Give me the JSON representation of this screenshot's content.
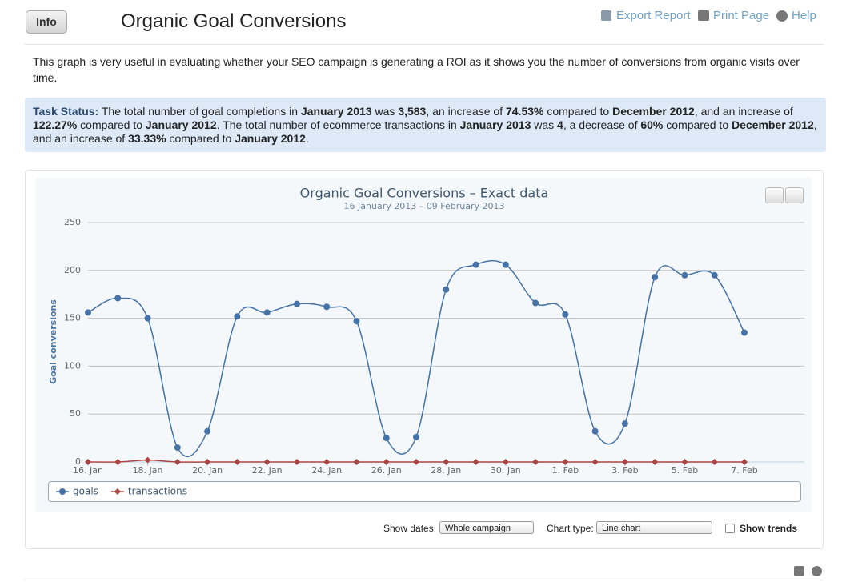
{
  "header": {
    "button": "Info",
    "title": "Organic Goal Conversions",
    "links": [
      "Export Report",
      "Print Page",
      "Help"
    ]
  },
  "description": "This graph is very useful in evaluating whether your SEO campaign is generating a ROI as it shows you the number of conversions from organic visits over time.",
  "task_status": {
    "label": "Task Status:",
    "parts": [
      " The total number of goal completions in ",
      "January 2013",
      " was ",
      "3,583",
      ", an increase of ",
      "74.53%",
      " compared to ",
      "December 2012",
      ", and an increase of ",
      "122.27%",
      " compared to ",
      "January 2012",
      ". The total number of ecommerce transactions in ",
      "January 2013",
      " was ",
      "4",
      ", a decrease of ",
      "60%",
      " compared to ",
      "December 2012",
      ", and an increase of ",
      "33.33%",
      " compared to ",
      "January 2012",
      "."
    ]
  },
  "chart_data": {
    "type": "line",
    "title": "Organic Goal Conversions – Exact data",
    "subtitle": "16 January 2013 – 09 February 2013",
    "y_label": "Goal conversions",
    "categories": [
      "16. Jan",
      null,
      "18. Jan",
      null,
      "20. Jan",
      null,
      "22. Jan",
      null,
      "24. Jan",
      null,
      "26. Jan",
      null,
      "28. Jan",
      null,
      "30. Jan",
      null,
      "1. Feb",
      null,
      "3. Feb",
      null,
      "5. Feb",
      null,
      "7. Feb"
    ],
    "series": [
      {
        "name": "goals",
        "color": "#4572a7",
        "values": [
          156,
          171,
          150,
          15,
          32,
          152,
          156,
          165,
          162,
          147,
          25,
          26,
          180,
          206,
          206,
          166,
          154,
          32,
          40,
          193,
          195,
          195,
          135
        ]
      },
      {
        "name": "transactions",
        "color": "#aa4643",
        "values": [
          0,
          0,
          2,
          0,
          0,
          0,
          0,
          0,
          0,
          0,
          0,
          0,
          0,
          0,
          0,
          0,
          0,
          0,
          0,
          0,
          0,
          0,
          0
        ]
      }
    ],
    "ylim": [
      0,
      250
    ],
    "yticks": [
      0,
      50,
      100,
      150,
      200,
      250
    ],
    "grid": true
  },
  "controls": {
    "show_dates": "Show dates:",
    "dates_value": "Whole campaign",
    "chart_type": "Chart type:",
    "type_value": "Line chart",
    "trends": "Show trends"
  }
}
